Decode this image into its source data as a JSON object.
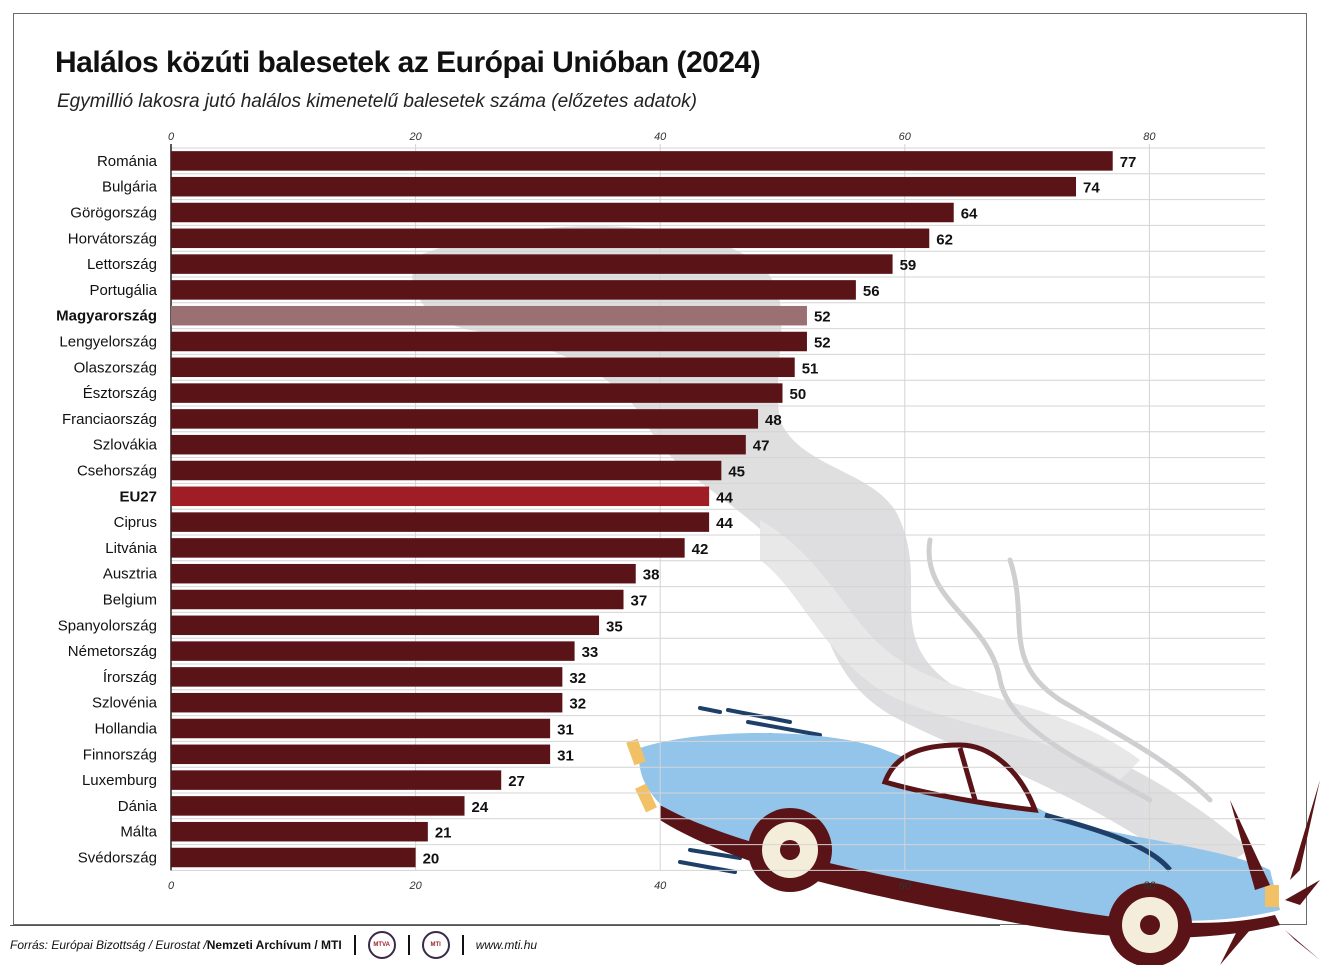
{
  "chart_data": {
    "type": "bar",
    "orientation": "horizontal",
    "title": "Halálos közúti balesetek az Európai Unióban (2024)",
    "subtitle": "Egymillió lakosra jutó halálos kimenetelű balesetek száma (előzetes adatok)",
    "categories": [
      "Románia",
      "Bulgária",
      "Görögország",
      "Horvátország",
      "Lettország",
      "Portugália",
      "Magyarország",
      "Lengyelország",
      "Olaszország",
      "Észtország",
      "Franciaország",
      "Szlovákia",
      "Csehország",
      "EU27",
      "Ciprus",
      "Litvánia",
      "Ausztria",
      "Belgium",
      "Spanyolország",
      "Németország",
      "Írország",
      "Szlovénia",
      "Hollandia",
      "Finnország",
      "Luxemburg",
      "Dánia",
      "Málta",
      "Svédország"
    ],
    "values": [
      77,
      74,
      64,
      62,
      59,
      56,
      52,
      52,
      51,
      50,
      48,
      47,
      45,
      44,
      44,
      42,
      38,
      37,
      35,
      33,
      32,
      32,
      31,
      31,
      27,
      24,
      21,
      20
    ],
    "highlight": {
      "Magyarország": "#9b7072",
      "EU27": "#a01d25"
    },
    "bold_categories": [
      "Magyarország",
      "EU27"
    ],
    "xlim": [
      0,
      90
    ],
    "xticks": [
      0,
      20,
      40,
      60,
      80
    ],
    "tick_labels_top": true,
    "tick_labels_bottom": true,
    "grid": true,
    "bar_color": "#5a1317"
  },
  "footer": {
    "source_prefix": "Forrás: Európai Bizottság / Eurostat / ",
    "source_bold": "Nemzeti Archívum / MTI",
    "logo1": "MTVA",
    "logo2": "MTI",
    "url": "www.mti.hu"
  }
}
